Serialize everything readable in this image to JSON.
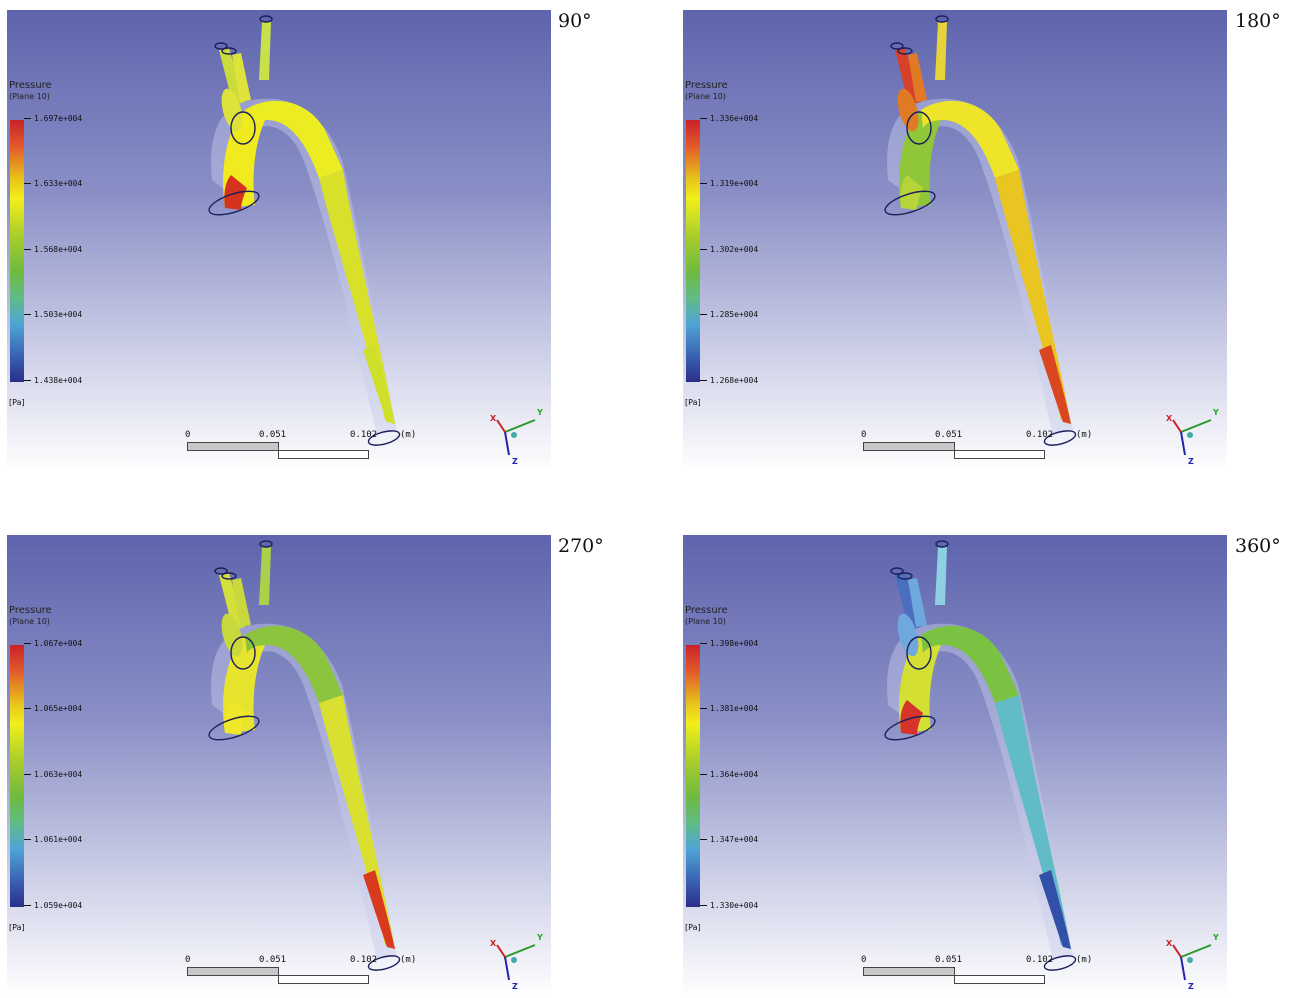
{
  "panels": [
    {
      "angle": "90°",
      "legend_title": "Pressure",
      "legend_sub": "(Plane 10)",
      "ticks": [
        "1.697e+004",
        "1.633e+004",
        "1.568e+004",
        "1.503e+004",
        "1.438e+004"
      ],
      "unit": "[Pa]",
      "scale": [
        "0",
        "0.051",
        "0.102",
        "(m)"
      ],
      "axes": {
        "x": "X",
        "y": "Y",
        "z": "Z"
      },
      "colors": {
        "root": "#f0ea1e",
        "inlet": "#d6331f",
        "arch": "#ecec22",
        "descending": "#d9e02a",
        "outlet": "#cfe02a",
        "branch1": "#c9dc3a",
        "branch2": "#dde33b",
        "branch3": "#c8e04a"
      }
    },
    {
      "angle": "180°",
      "legend_title": "Pressure",
      "legend_sub": "(Plane 10)",
      "ticks": [
        "1.336e+004",
        "1.319e+004",
        "1.302e+004",
        "1.285e+004",
        "1.268e+004"
      ],
      "unit": "[Pa]",
      "scale": [
        "0",
        "0.051",
        "0.102",
        "(m)"
      ],
      "axes": {
        "x": "X",
        "y": "Y",
        "z": "Z"
      },
      "colors": {
        "root": "#8fc63a",
        "inlet": "#b7d53a",
        "arch": "#eee52a",
        "descending": "#e8c521",
        "outlet": "#d9461f",
        "branch1": "#d7412a",
        "branch2": "#e07a24",
        "branch3": "#e6d33a"
      }
    },
    {
      "angle": "270°",
      "legend_title": "Pressure",
      "legend_sub": "(Plane 10)",
      "ticks": [
        "1.067e+004",
        "1.065e+004",
        "1.063e+004",
        "1.061e+004",
        "1.059e+004"
      ],
      "unit": "[Pa]",
      "scale": [
        "0",
        "0.051",
        "0.102",
        "(m)"
      ],
      "axes": {
        "x": "X",
        "y": "Y",
        "z": "Z"
      },
      "colors": {
        "root": "#e6e42c",
        "inlet": "#f0e72a",
        "arch": "#8cc43e",
        "descending": "#d9e030",
        "outlet": "#d93a1e",
        "branch1": "#d4e03a",
        "branch2": "#c9d83c",
        "branch3": "#a9d24a"
      }
    },
    {
      "angle": "360°",
      "legend_title": "Pressure",
      "legend_sub": "(Plane 10)",
      "ticks": [
        "1.398e+004",
        "1.381e+004",
        "1.364e+004",
        "1.347e+004",
        "1.330e+004"
      ],
      "unit": "[Pa]",
      "scale": [
        "0",
        "0.051",
        "0.102",
        "(m)"
      ],
      "axes": {
        "x": "X",
        "y": "Y",
        "z": "Z"
      },
      "colors": {
        "root": "#d3e033",
        "inlet": "#d6342a",
        "arch": "#7cc242",
        "descending": "#62bcc8",
        "outlet": "#3350a8",
        "branch1": "#4a6ec0",
        "branch2": "#6fa8dc",
        "branch3": "#8fd0e0"
      }
    }
  ]
}
